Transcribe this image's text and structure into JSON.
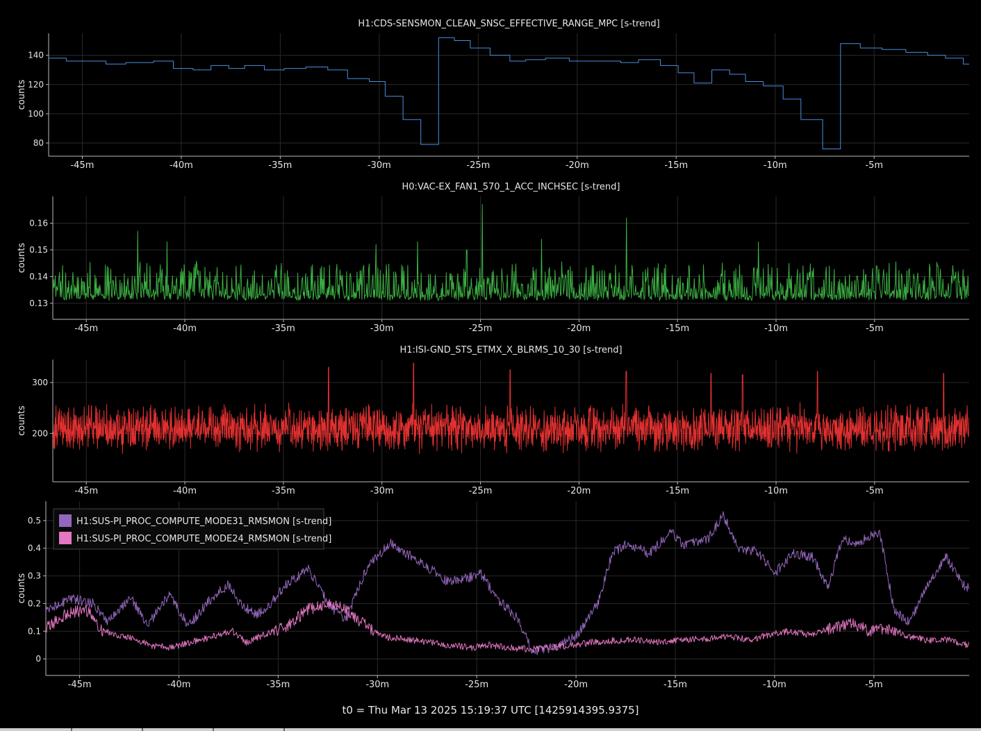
{
  "footer": {
    "t0": "t0 = Thu Mar 13 2025 15:19:37 UTC [1425914395.9375]"
  },
  "theme": {
    "background": "#000000",
    "grid": "#2a2a2a",
    "axis": "#bbbbbb",
    "text": "#e6e6e6"
  },
  "chart_data": [
    {
      "type": "line",
      "title": "H1:CDS-SENSMON_CLEAN_SNSC_EFFECTIVE_RANGE_MPC [s-trend]",
      "ylabel": "counts",
      "xlabel": "",
      "xlim": [
        -46.7,
        -0.2
      ],
      "ylim": [
        71,
        155
      ],
      "yticks": [
        80,
        100,
        120,
        140
      ],
      "xticks": [
        -45,
        -40,
        -35,
        -30,
        -25,
        -20,
        -15,
        -10,
        -5
      ],
      "xtick_labels": [
        "-45m",
        "-40m",
        "-35m",
        "-30m",
        "-25m",
        "-20m",
        "-15m",
        "-10m",
        "-5m"
      ],
      "grid": true,
      "step": true,
      "series": [
        {
          "color": "#4a8fe0",
          "x": [
            -46.7,
            -45.8,
            -43.8,
            -42.8,
            -41.4,
            -40.4,
            -39.4,
            -38.5,
            -37.6,
            -36.8,
            -35.8,
            -34.8,
            -33.7,
            -32.6,
            -31.6,
            -30.5,
            -29.7,
            -28.8,
            -27.9,
            -27.0,
            -26.2,
            -25.4,
            -24.4,
            -23.4,
            -22.6,
            -21.6,
            -20.4,
            -19.2,
            -17.8,
            -16.9,
            -15.8,
            -14.9,
            -14.1,
            -13.2,
            -12.3,
            -11.5,
            -10.6,
            -9.6,
            -8.7,
            -7.6,
            -6.7,
            -5.7,
            -4.6,
            -3.4,
            -2.3,
            -1.4,
            -0.5
          ],
          "y": [
            138,
            136,
            134,
            135,
            136,
            131,
            130,
            133,
            131,
            133,
            130,
            131,
            132,
            130,
            124,
            122,
            112,
            96,
            79,
            152,
            150,
            145,
            140,
            136,
            137,
            138,
            136,
            136,
            135,
            137,
            133,
            128,
            121,
            130,
            127,
            122,
            119,
            110,
            96,
            76,
            148,
            145,
            144,
            142,
            140,
            138,
            134
          ]
        }
      ]
    },
    {
      "type": "line",
      "title": "H0:VAC-EX_FAN1_570_1_ACC_INCHSEC [s-trend]",
      "ylabel": "counts",
      "xlabel": "",
      "xlim": [
        -46.7,
        -0.2
      ],
      "ylim": [
        0.124,
        0.17
      ],
      "yticks": [
        0.13,
        0.14,
        0.15,
        0.16
      ],
      "xticks": [
        -45,
        -40,
        -35,
        -30,
        -25,
        -20,
        -15,
        -10,
        -5
      ],
      "xtick_labels": [
        "-45m",
        "-40m",
        "-35m",
        "-30m",
        "-25m",
        "-20m",
        "-15m",
        "-10m",
        "-5m"
      ],
      "grid": true,
      "series": [
        {
          "color": "#3cb043",
          "noise": "spiky",
          "base": 0.132,
          "spread": 0.006,
          "peaks": [
            [
              -42.4,
              0.157
            ],
            [
              -40.9,
              0.153
            ],
            [
              -35.1,
              0.145
            ],
            [
              -30.3,
              0.152
            ],
            [
              -28.2,
              0.153
            ],
            [
              -25.7,
              0.15
            ],
            [
              -24.9,
              0.167
            ],
            [
              -21.9,
              0.154
            ],
            [
              -17.6,
              0.162
            ],
            [
              -10.9,
              0.153
            ],
            [
              -4.9,
              0.144
            ],
            [
              -1.8,
              0.144
            ]
          ]
        }
      ]
    },
    {
      "type": "line",
      "title": "H1:ISI-GND_STS_ETMX_X_BLRMS_10_30 [s-trend]",
      "ylabel": "counts",
      "xlabel": "",
      "xlim": [
        -46.7,
        -0.2
      ],
      "ylim": [
        105,
        345
      ],
      "yticks": [
        200,
        300
      ],
      "xticks": [
        -45,
        -40,
        -35,
        -30,
        -25,
        -20,
        -15,
        -10,
        -5
      ],
      "xtick_labels": [
        "-45m",
        "-40m",
        "-35m",
        "-30m",
        "-25m",
        "-20m",
        "-15m",
        "-10m",
        "-5m"
      ],
      "grid": true,
      "series": [
        {
          "color": "#e03030",
          "noise": "band",
          "base": 210,
          "spread": 32,
          "peaks": [
            [
              -32.7,
              330
            ],
            [
              -28.4,
              338
            ],
            [
              -23.5,
              325
            ],
            [
              -17.6,
              322
            ],
            [
              -13.3,
              318
            ],
            [
              -11.7,
              315
            ],
            [
              -7.9,
              322
            ],
            [
              -1.5,
              318
            ]
          ]
        }
      ]
    },
    {
      "type": "line",
      "title": "",
      "ylabel": "counts",
      "xlabel": "",
      "xlim": [
        -46.7,
        -0.2
      ],
      "ylim": [
        -0.06,
        0.57
      ],
      "yticks": [
        0,
        0.1,
        0.2,
        0.3,
        0.4,
        0.5
      ],
      "xticks": [
        -45,
        -40,
        -35,
        -30,
        -25,
        -20,
        -15,
        -10,
        -5
      ],
      "xtick_labels": [
        "-45m",
        "-40m",
        "-35m",
        "-30m",
        "-25m",
        "-20m",
        "-15m",
        "-10m",
        "-5m"
      ],
      "grid": true,
      "legend": "top-left",
      "series": [
        {
          "name": "H1:SUS-PI_PROC_COMPUTE_MODE31_RMSMON [s-trend]",
          "color": "#9467bd",
          "x": [
            -46.7,
            -45.5,
            -44.3,
            -43.6,
            -42.4,
            -41.6,
            -40.5,
            -39.5,
            -38.5,
            -37.5,
            -36.9,
            -36.2,
            -35.6,
            -34.7,
            -33.5,
            -32.5,
            -31.6,
            -30.6,
            -29.4,
            -28.5,
            -27.6,
            -26.5,
            -25.6,
            -24.8,
            -24.0,
            -23.0,
            -22.2,
            -21.0,
            -20.0,
            -18.9,
            -18.2,
            -17.4,
            -16.3,
            -15.2,
            -14.6,
            -13.4,
            -12.6,
            -11.8,
            -10.9,
            -10.0,
            -9.1,
            -8.1,
            -7.3,
            -6.6,
            -5.8,
            -4.7,
            -4.0,
            -3.2,
            -2.4,
            -1.4,
            -0.4
          ],
          "y": [
            0.17,
            0.22,
            0.2,
            0.14,
            0.22,
            0.12,
            0.23,
            0.12,
            0.21,
            0.27,
            0.2,
            0.16,
            0.18,
            0.26,
            0.33,
            0.2,
            0.14,
            0.32,
            0.42,
            0.38,
            0.34,
            0.28,
            0.29,
            0.31,
            0.22,
            0.15,
            0.03,
            0.04,
            0.08,
            0.2,
            0.38,
            0.42,
            0.38,
            0.46,
            0.41,
            0.43,
            0.52,
            0.4,
            0.39,
            0.31,
            0.38,
            0.37,
            0.26,
            0.43,
            0.42,
            0.46,
            0.18,
            0.13,
            0.25,
            0.37,
            0.26
          ]
        },
        {
          "name": "H1:SUS-PI_PROC_COMPUTE_MODE24_RMSMON [s-trend]",
          "color": "#e377c2",
          "x": [
            -46.7,
            -45.7,
            -44.7,
            -43.8,
            -42.6,
            -41.5,
            -40.4,
            -39.4,
            -38.3,
            -37.3,
            -36.6,
            -35.6,
            -34.5,
            -33.5,
            -32.4,
            -31.4,
            -30.6,
            -29.7,
            -28.5,
            -27.4,
            -26.4,
            -25.3,
            -24.3,
            -23.3,
            -22.2,
            -21.2,
            -20.2,
            -19.2,
            -18.2,
            -17.2,
            -16.2,
            -15.2,
            -14.2,
            -13.2,
            -12.2,
            -11.2,
            -10.2,
            -9.2,
            -8.2,
            -7.2,
            -6.2,
            -5.2,
            -4.2,
            -3.2,
            -2.2,
            -1.2,
            -0.3
          ],
          "y": [
            0.11,
            0.16,
            0.18,
            0.1,
            0.08,
            0.05,
            0.04,
            0.06,
            0.08,
            0.1,
            0.06,
            0.09,
            0.12,
            0.18,
            0.2,
            0.17,
            0.12,
            0.08,
            0.07,
            0.06,
            0.05,
            0.04,
            0.05,
            0.04,
            0.035,
            0.04,
            0.05,
            0.06,
            0.065,
            0.07,
            0.06,
            0.065,
            0.07,
            0.075,
            0.08,
            0.07,
            0.09,
            0.1,
            0.085,
            0.11,
            0.13,
            0.1,
            0.11,
            0.08,
            0.065,
            0.07,
            0.05
          ]
        }
      ]
    }
  ]
}
